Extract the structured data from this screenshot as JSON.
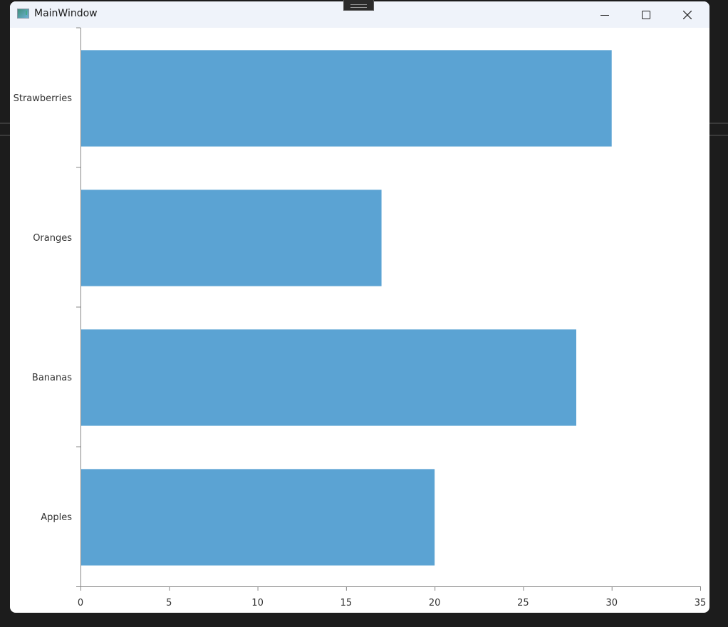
{
  "window": {
    "title": "MainWindow",
    "icons": {
      "minimize": "minimize-icon",
      "maximize": "maximize-icon",
      "close": "close-icon"
    }
  },
  "chart_data": {
    "type": "bar",
    "orientation": "horizontal",
    "categories": [
      "Apples",
      "Bananas",
      "Oranges",
      "Strawberries"
    ],
    "values": [
      20,
      28,
      17,
      30
    ],
    "xlim": [
      0,
      35
    ],
    "xticks": [
      "0",
      "5",
      "10",
      "15",
      "20",
      "25",
      "30",
      "35"
    ],
    "grid": false,
    "bar_color": "#5ba3d3",
    "title": "",
    "xlabel": "",
    "ylabel": ""
  }
}
